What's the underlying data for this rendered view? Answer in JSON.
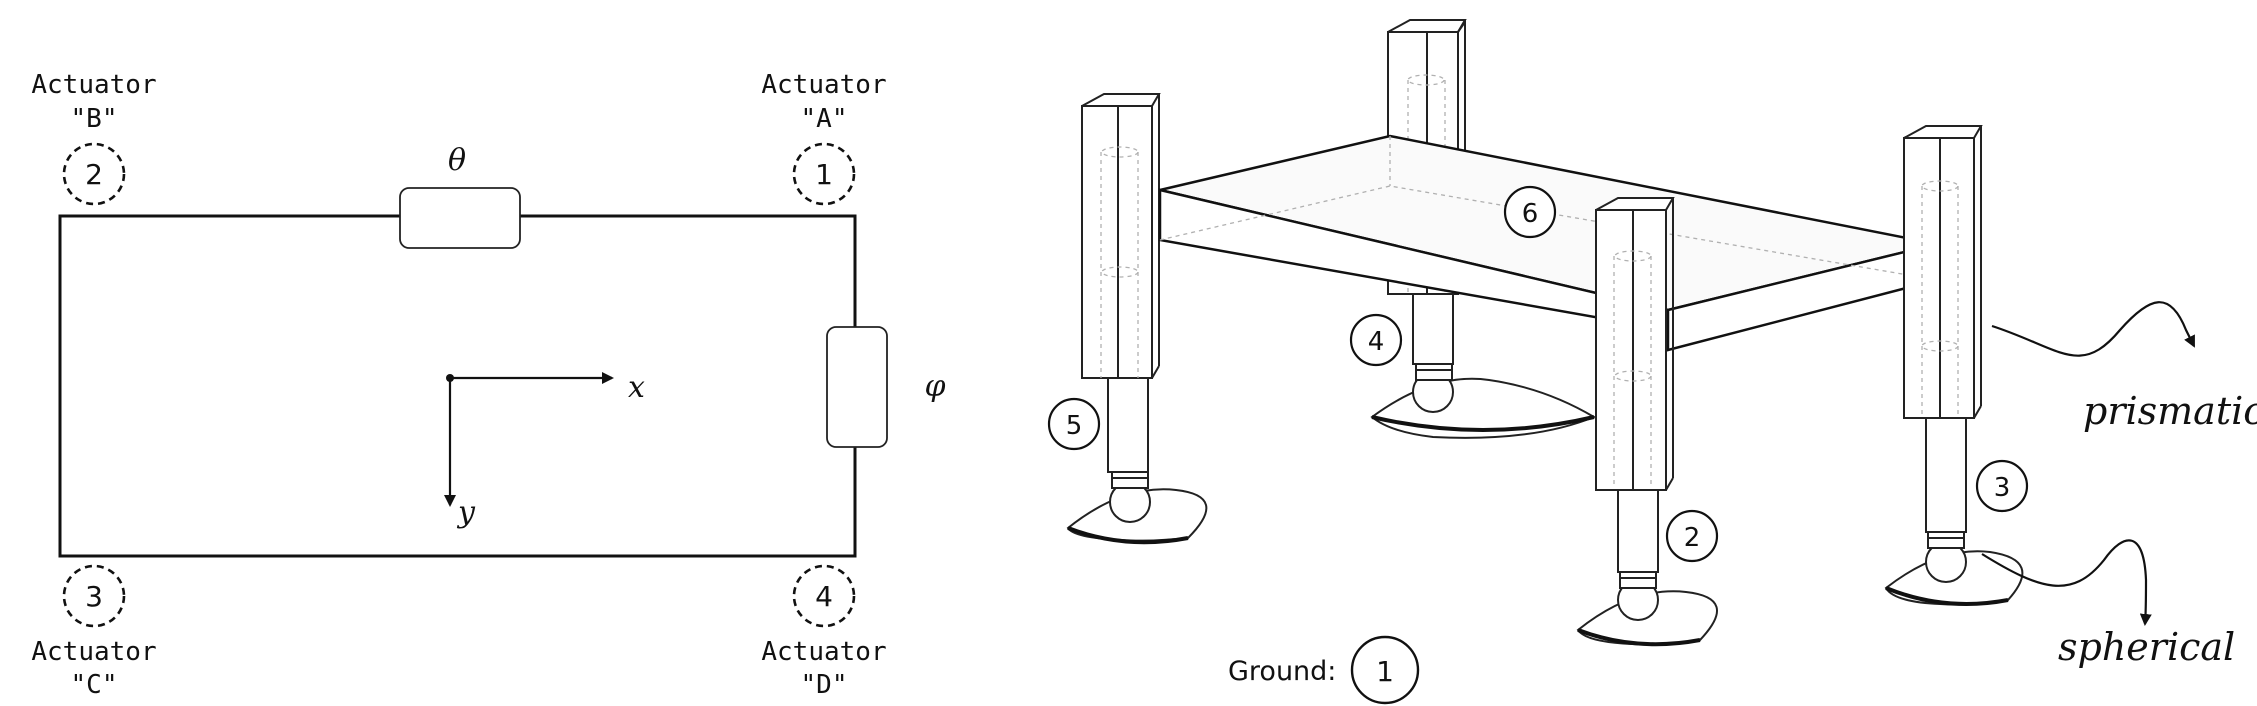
{
  "plan_view": {
    "actuators": [
      {
        "title": "Actuator",
        "id": "\"A\"",
        "number": "1"
      },
      {
        "title": "Actuator",
        "id": "\"B\"",
        "number": "2"
      },
      {
        "title": "Actuator",
        "id": "\"C\"",
        "number": "3"
      },
      {
        "title": "Actuator",
        "id": "\"D\"",
        "number": "4"
      }
    ],
    "theta_label": "θ",
    "phi_label": "φ",
    "x_axis_label": "x",
    "y_axis_label": "y"
  },
  "iso_view": {
    "part_numbers": [
      "2",
      "3",
      "4",
      "5",
      "6"
    ],
    "ground_label": "Ground:",
    "ground_number": "1",
    "joint_labels": {
      "prismatic": "prismatic",
      "spherical": "spherical"
    }
  }
}
